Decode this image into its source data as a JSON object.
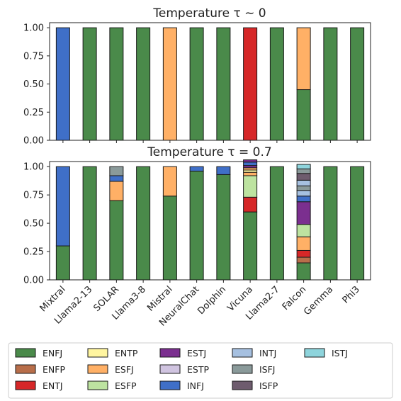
{
  "chart_data": [
    {
      "type": "bar",
      "stacked": true,
      "title": "Temperature τ ∼ 0",
      "ylim": [
        0,
        1.0
      ],
      "yticks": [
        "0.00",
        "0.25",
        "0.50",
        "0.75",
        "1.00"
      ],
      "categories": [
        "Mixtral",
        "Llama2-13",
        "SOLAR",
        "Llama3-8",
        "Mistral",
        "NeuralChat",
        "Dolphin",
        "Vicuna",
        "Llama2-7",
        "Falcon",
        "Gemma",
        "Phi3"
      ],
      "stacks": [
        [
          [
            "INFJ",
            1.0
          ]
        ],
        [
          [
            "ENFJ",
            1.0
          ]
        ],
        [
          [
            "ENFJ",
            1.0
          ]
        ],
        [
          [
            "ENFJ",
            1.0
          ]
        ],
        [
          [
            "ESFJ",
            1.0
          ]
        ],
        [
          [
            "ENFJ",
            1.0
          ]
        ],
        [
          [
            "ENFJ",
            1.0
          ]
        ],
        [
          [
            "ENTJ",
            1.0
          ]
        ],
        [
          [
            "ENFJ",
            1.0
          ]
        ],
        [
          [
            "ENFJ",
            0.45
          ],
          [
            "ESFJ",
            0.55
          ]
        ],
        [
          [
            "ENFJ",
            1.0
          ]
        ],
        [
          [
            "ENFJ",
            1.0
          ]
        ]
      ]
    },
    {
      "type": "bar",
      "stacked": true,
      "title": "Temperature τ = 0.7",
      "ylim": [
        0,
        1.0
      ],
      "yticks": [
        "0.00",
        "0.25",
        "0.50",
        "0.75",
        "1.00"
      ],
      "categories": [
        "Mixtral",
        "Llama2-13",
        "SOLAR",
        "Llama3-8",
        "Mistral",
        "NeuralChat",
        "Dolphin",
        "Vicuna",
        "Llama2-7",
        "Falcon",
        "Gemma",
        "Phi3"
      ],
      "stacks": [
        [
          [
            "ENFJ",
            0.3
          ],
          [
            "INFJ",
            0.7
          ]
        ],
        [
          [
            "ENFJ",
            1.0
          ]
        ],
        [
          [
            "ENFJ",
            0.7
          ],
          [
            "ESFJ",
            0.17
          ],
          [
            "INFJ",
            0.05
          ],
          [
            "ISFJ",
            0.08
          ]
        ],
        [
          [
            "ENFJ",
            1.0
          ]
        ],
        [
          [
            "ENFJ",
            0.74
          ],
          [
            "ESFJ",
            0.26
          ]
        ],
        [
          [
            "ENFJ",
            0.96
          ],
          [
            "INFJ",
            0.04
          ]
        ],
        [
          [
            "ENFJ",
            0.93
          ],
          [
            "INFJ",
            0.07
          ]
        ],
        [
          [
            "ENFJ",
            0.6
          ],
          [
            "ENTJ",
            0.13
          ],
          [
            "ESFP",
            0.19
          ],
          [
            "ESFJ",
            0.03
          ],
          [
            "ENTP",
            0.02
          ],
          [
            "ESFJ",
            0.02
          ],
          [
            "ESTJ",
            0.02
          ],
          [
            "INFJ",
            0.03
          ],
          [
            "ESTJ",
            0.02
          ]
        ],
        [
          [
            "ENFJ",
            1.0
          ]
        ],
        [
          [
            "ENFJ",
            0.15
          ],
          [
            "ENFP",
            0.05
          ],
          [
            "ENTJ",
            0.06
          ],
          [
            "ESFJ",
            0.12
          ],
          [
            "ESFP",
            0.11
          ],
          [
            "ESTJ",
            0.2
          ],
          [
            "INFJ",
            0.05
          ],
          [
            "INTJ",
            0.05
          ],
          [
            "ISFJ",
            0.04
          ],
          [
            "INTJ",
            0.05
          ],
          [
            "ISFP",
            0.06
          ],
          [
            "ISFJ",
            0.04
          ],
          [
            "ISTJ",
            0.04
          ]
        ],
        [
          [
            "ENFJ",
            1.0
          ]
        ],
        [
          [
            "ENFJ",
            1.0
          ]
        ]
      ]
    }
  ],
  "legend": [
    {
      "label": "ENFJ",
      "color": "#4a8a4a"
    },
    {
      "label": "ENFP",
      "color": "#b86e4a"
    },
    {
      "label": "ENTJ",
      "color": "#d62728"
    },
    {
      "label": "ENTP",
      "color": "#fff5a0"
    },
    {
      "label": "ESFJ",
      "color": "#ffb066"
    },
    {
      "label": "ESFP",
      "color": "#bde3a0"
    },
    {
      "label": "ESTJ",
      "color": "#7b2f8f"
    },
    {
      "label": "ESTP",
      "color": "#d0c4e0"
    },
    {
      "label": "INFJ",
      "color": "#3f6fc8"
    },
    {
      "label": "INTJ",
      "color": "#a6c0e0"
    },
    {
      "label": "ISFJ",
      "color": "#8a9a9a"
    },
    {
      "label": "ISFP",
      "color": "#6e5c6e"
    },
    {
      "label": "ISTJ",
      "color": "#8ed4dc"
    }
  ]
}
